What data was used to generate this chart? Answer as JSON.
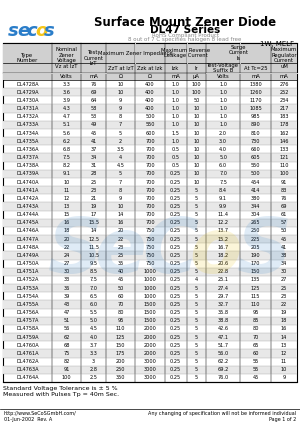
{
  "title": "Surface Mount Zener Diode",
  "subtitle": "DL47 Series",
  "rohs_text": "RoHS Compliant Product",
  "halogen_text": "8 out of 7 C specifies halogen 8 lead free",
  "package": "1W, MELF",
  "col_units": [
    "",
    "Volts",
    "mA",
    "Ω",
    "Ω",
    "mA",
    "μA",
    "Volts",
    "mA",
    "mA"
  ],
  "rows": [
    [
      "DL4728A",
      "3.3",
      "76",
      "10",
      "400",
      "1.0",
      "100",
      "1.0",
      "1380",
      "276"
    ],
    [
      "DL4729A",
      "3.6",
      "69",
      "10",
      "400",
      "1.0",
      "100",
      "1.0",
      "1260",
      "252"
    ],
    [
      "DL4730A",
      "3.9",
      "64",
      "9",
      "400",
      "1.0",
      "50",
      "1.0",
      "1170",
      "234"
    ],
    [
      "DL4731A",
      "4.3",
      "58",
      "9",
      "400",
      "1.0",
      "10",
      "1.0",
      "1085",
      "217"
    ],
    [
      "DL4732A",
      "4.7",
      "53",
      "8",
      "500",
      "1.0",
      "10",
      "1.0",
      "985",
      "183"
    ],
    [
      "DL4733A",
      "5.1",
      "49",
      "7",
      "550",
      "1.0",
      "10",
      "1.0",
      "890",
      "178"
    ],
    [
      "DL4734A",
      "5.6",
      "45",
      "5",
      "600",
      "1.5",
      "10",
      "2.0",
      "810",
      "162"
    ],
    [
      "DL4735A",
      "6.2",
      "41",
      "2",
      "700",
      "1.0",
      "10",
      "3.0",
      "730",
      "146"
    ],
    [
      "DL4736A",
      "6.8",
      "37",
      "3.5",
      "700",
      "0.5",
      "10",
      "4.0",
      "660",
      "133"
    ],
    [
      "DL4737A",
      "7.5",
      "34",
      "4",
      "700",
      "0.5",
      "10",
      "5.0",
      "605",
      "121"
    ],
    [
      "DL4738A",
      "8.2",
      "31",
      "4.5",
      "700",
      "0.5",
      "10",
      "6.0",
      "550",
      "110"
    ],
    [
      "DL4739A",
      "9.1",
      "28",
      "5",
      "700",
      "0.25",
      "10",
      "7.0",
      "500",
      "100"
    ],
    [
      "DL4740A",
      "10",
      "25",
      "7",
      "700",
      "0.25",
      "10",
      "7.5",
      "454",
      "91"
    ],
    [
      "DL4741A",
      "11",
      "23",
      "8",
      "700",
      "0.25",
      "5",
      "8.4",
      "414",
      "83"
    ],
    [
      "DL4742A",
      "12",
      "21",
      "9",
      "700",
      "0.25",
      "5",
      "9.1",
      "380",
      "76"
    ],
    [
      "DL4743A",
      "13",
      "19",
      "10",
      "700",
      "0.25",
      "5",
      "9.9",
      "344",
      "69"
    ],
    [
      "DL4744A",
      "15",
      "17",
      "14",
      "700",
      "0.25",
      "5",
      "11.4",
      "304",
      "61"
    ],
    [
      "DL4745A",
      "16",
      "15.5",
      "16",
      "700",
      "0.25",
      "5",
      "12.2",
      "265",
      "57"
    ],
    [
      "DL4746A",
      "18",
      "14",
      "20",
      "750",
      "0.25",
      "5",
      "13.7",
      "250",
      "50"
    ],
    [
      "DL4747A",
      "20",
      "12.5",
      "22",
      "750",
      "0.25",
      "5",
      "15.2",
      "225",
      "45"
    ],
    [
      "DL4748A",
      "22",
      "11.5",
      "23",
      "750",
      "0.25",
      "5",
      "16.7",
      "205",
      "41"
    ],
    [
      "DL4749A",
      "24",
      "10.5",
      "25",
      "750",
      "0.25",
      "5",
      "18.2",
      "190",
      "38"
    ],
    [
      "DL4750A",
      "27",
      "9.5",
      "35",
      "750",
      "0.25",
      "5",
      "20.6",
      "170",
      "34"
    ],
    [
      "DL4751A",
      "30",
      "8.5",
      "40",
      "1000",
      "0.25",
      "5",
      "22.8",
      "150",
      "30"
    ],
    [
      "DL4752A",
      "33",
      "7.5",
      "45",
      "1000",
      "0.25",
      "4",
      "25.1",
      "135",
      "27"
    ],
    [
      "DL4753A",
      "36",
      "7.0",
      "50",
      "1000",
      "0.25",
      "5",
      "27.4",
      "125",
      "25"
    ],
    [
      "DL4754A",
      "39",
      "6.5",
      "60",
      "1000",
      "0.25",
      "5",
      "29.7",
      "115",
      "23"
    ],
    [
      "DL4755A",
      "43",
      "6.0",
      "70",
      "1500",
      "0.25",
      "5",
      "32.7",
      "110",
      "22"
    ],
    [
      "DL4756A",
      "47",
      "5.5",
      "80",
      "1500",
      "0.25",
      "5",
      "35.8",
      "95",
      "19"
    ],
    [
      "DL4757A",
      "51",
      "5.0",
      "95",
      "1500",
      "0.25",
      "5",
      "38.8",
      "85",
      "18"
    ],
    [
      "DL4758A",
      "56",
      "4.5",
      "110",
      "2000",
      "0.25",
      "5",
      "42.6",
      "80",
      "16"
    ],
    [
      "DL4759A",
      "62",
      "4.0",
      "125",
      "2000",
      "0.25",
      "5",
      "47.1",
      "70",
      "14"
    ],
    [
      "DL4760A",
      "68",
      "3.7",
      "150",
      "2000",
      "0.25",
      "5",
      "51.7",
      "65",
      "13"
    ],
    [
      "DL4761A",
      "75",
      "3.3",
      "175",
      "2000",
      "0.25",
      "5",
      "56.0",
      "60",
      "12"
    ],
    [
      "DL4762A",
      "82",
      "3",
      "200",
      "3000",
      "0.25",
      "5",
      "62.2",
      "55",
      "11"
    ],
    [
      "DL4763A",
      "91",
      "2.8",
      "250",
      "3000",
      "0.25",
      "5",
      "69.2",
      "55",
      "10"
    ],
    [
      "DL4764A",
      "100",
      "2.5",
      "350",
      "3000",
      "0.25",
      "5",
      "76.0",
      "45",
      "9"
    ]
  ],
  "footer_note1": "Standard Voltage Tolerance is ± 5 %",
  "footer_note2": "Measured with Pulses Tp = 40m Sec.",
  "footer_url": "http://www.SeCoSGmbH.com/",
  "footer_right": "Any changing of specification will not be informed individual",
  "footer_date": "01-Jun-2002  Rev. A",
  "footer_page": "Page 1 of 2",
  "bg_color": "#ffffff"
}
